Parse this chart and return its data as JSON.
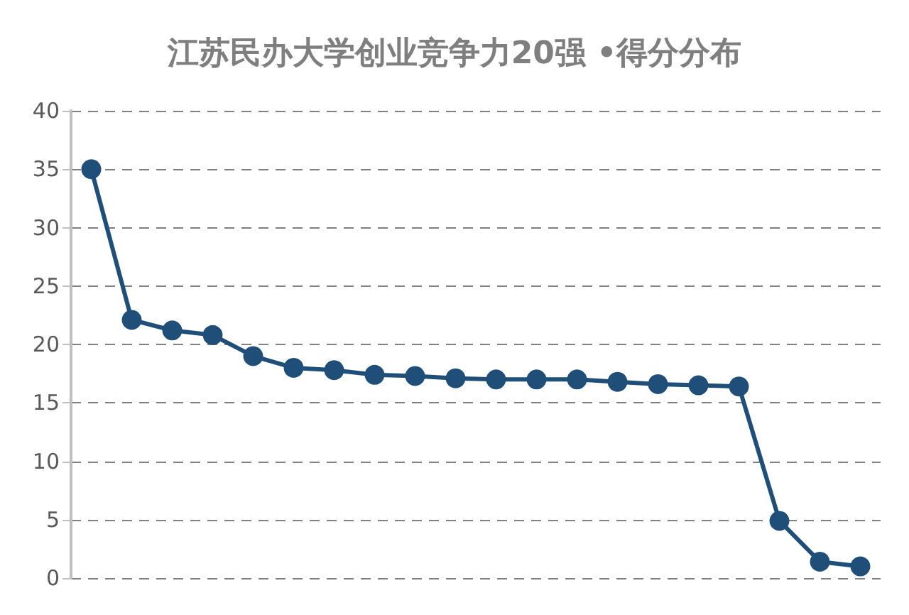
{
  "chart_data": {
    "type": "line",
    "title": "江苏民办大学创业竞争力20强 •得分分布",
    "categories": [
      null,
      null,
      null,
      null,
      null,
      null,
      null,
      null,
      null,
      null,
      null,
      null,
      null,
      null,
      null,
      null,
      null,
      null,
      null,
      null
    ],
    "series": [
      {
        "color": "#1f4e79",
        "values": [
          35,
          22.1,
          21.2,
          20.8,
          19.0,
          18.0,
          17.8,
          17.4,
          17.3,
          17.1,
          17.0,
          17.0,
          17.0,
          16.8,
          16.6,
          16.5,
          16.4,
          4.9,
          1.4,
          1.0
        ]
      }
    ],
    "ylim": [
      0,
      40
    ],
    "yticks": [
      0,
      5,
      10,
      15,
      20,
      25,
      30,
      35,
      40
    ],
    "grid": "y",
    "marker": "circle",
    "line_style": "solid"
  }
}
